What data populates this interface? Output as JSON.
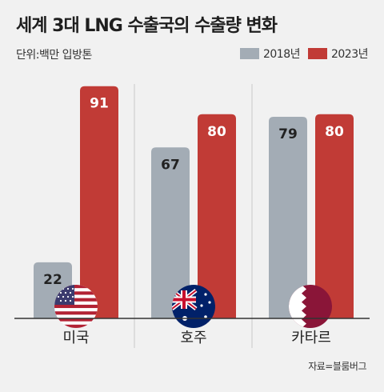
{
  "title": "세계 3대 LNG 수출국의 수출량 변화",
  "unit_label": "단위:백만 입방톤",
  "source": "자료=블룸버그",
  "chart_data": {
    "type": "bar",
    "categories": [
      "미국",
      "호주",
      "카타르"
    ],
    "series": [
      {
        "name": "2018년",
        "values": [
          22,
          67,
          79
        ],
        "color": "#a3acb5"
      },
      {
        "name": "2023년",
        "values": [
          91,
          80,
          80
        ],
        "color": "#c13b36"
      }
    ],
    "ylim": [
      0,
      100
    ],
    "legend_position": "top-right",
    "grid": false
  },
  "icons": [
    "us-flag-icon",
    "australia-flag-icon",
    "qatar-flag-icon"
  ]
}
